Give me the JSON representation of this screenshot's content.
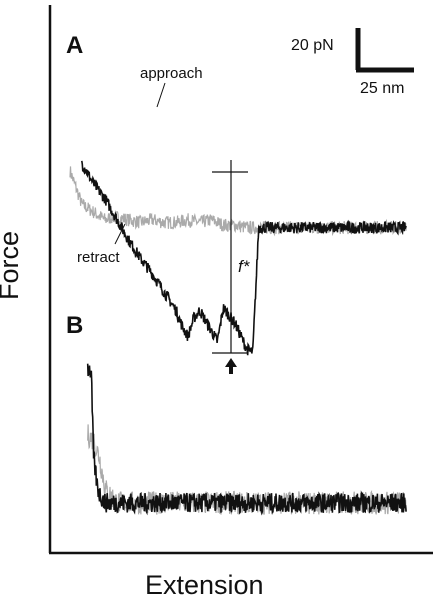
{
  "chart_data": [
    {
      "type": "line",
      "panel_label": "A",
      "xlabel": "Extension",
      "ylabel": "Force",
      "annotations": {
        "approach": "approach",
        "retract": "retract",
        "rupture_force": "f*"
      },
      "scale_bar": {
        "force_label": "20 pN",
        "extension_label": "25 nm",
        "force_pN": 20,
        "extension_nm": 25
      },
      "series": [
        {
          "name": "approach",
          "color": "#aaaaaa",
          "x": [
            -10,
            0,
            10,
            20,
            25,
            30,
            40,
            50,
            60,
            70,
            80,
            90,
            100,
            110,
            120,
            130,
            140,
            150,
            160,
            170,
            180,
            190,
            200,
            210,
            220,
            230,
            240,
            250,
            260,
            275
          ],
          "y": [
            22,
            9,
            6,
            3,
            4,
            4,
            3,
            2,
            3,
            2,
            2,
            3,
            2,
            3,
            1,
            1,
            0,
            0,
            0,
            0,
            0,
            0,
            0,
            0,
            0,
            0,
            0,
            0,
            0,
            0
          ]
        },
        {
          "name": "retract",
          "color": "#111111",
          "x": [
            0,
            10,
            20,
            30,
            40,
            50,
            60,
            70,
            80,
            85,
            90,
            95,
            100,
            105,
            110,
            115,
            120,
            130,
            140,
            145,
            150,
            155,
            160,
            165,
            170,
            180,
            190,
            200,
            210,
            220,
            230,
            240,
            250,
            260,
            270,
            275
          ],
          "y": [
            25,
            17,
            11,
            3,
            -5,
            -12,
            -18,
            -25,
            -32,
            -38,
            -42,
            -35,
            -32,
            -36,
            -40,
            -44,
            -31,
            -37,
            -47,
            -48,
            0,
            0,
            0,
            0,
            0,
            0,
            0,
            0,
            0,
            0,
            0,
            0,
            0,
            0,
            0,
            0
          ]
        }
      ],
      "xlim": [
        -10,
        280
      ],
      "ylim": [
        -55,
        30
      ]
    },
    {
      "type": "line",
      "panel_label": "B",
      "series": [
        {
          "name": "approach",
          "color": "#aaaaaa",
          "x": [
            5,
            10,
            15,
            20,
            30,
            40,
            60,
            80,
            100,
            120,
            140,
            160,
            180,
            200,
            220,
            240,
            260,
            275
          ],
          "y": [
            15,
            14,
            10,
            3,
            0,
            0,
            0,
            0,
            0,
            0,
            0,
            0,
            0,
            0,
            0,
            0,
            0,
            0
          ]
        },
        {
          "name": "retract",
          "color": "#111111",
          "x": [
            5,
            8,
            10,
            13,
            15,
            20,
            30,
            40,
            60,
            80,
            100,
            120,
            140,
            160,
            180,
            200,
            220,
            240,
            260,
            275
          ],
          "y": [
            30,
            29,
            10,
            4,
            2,
            0,
            0,
            0,
            0,
            0,
            0,
            0,
            0,
            0,
            0,
            0,
            0,
            0,
            0,
            0
          ]
        }
      ],
      "xlim": [
        -10,
        280
      ],
      "ylim": [
        -10,
        35
      ]
    }
  ]
}
